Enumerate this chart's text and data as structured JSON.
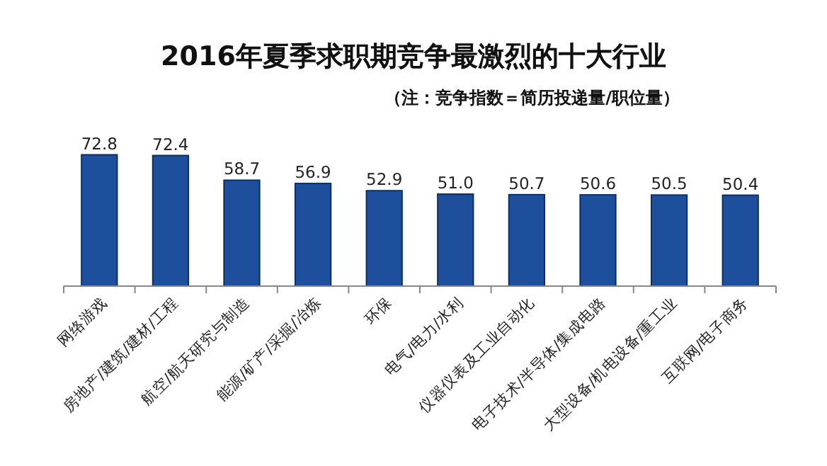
{
  "chart_data": {
    "type": "bar",
    "title": "2016年夏季求职期竞争最激烈的十大行业",
    "subtitle": "（注：竞争指数＝简历投递量/职位量）",
    "categories": [
      "网络游戏",
      "房地产/建筑/建材/工程",
      "航空/航天研究与制造",
      "能源/矿产/采掘/冶炼",
      "环保",
      "电气/电力/水利",
      "仪器仪表及工业自动化",
      "电子技术/半导体/集成电路",
      "大型设备/机电设备/重工业",
      "互联网/电子商务"
    ],
    "values": [
      72.8,
      72.4,
      58.7,
      56.9,
      52.9,
      51.0,
      50.7,
      50.6,
      50.5,
      50.4
    ],
    "value_labels": [
      "72.8",
      "72.4",
      "58.7",
      "56.9",
      "52.9",
      "51.0",
      "50.7",
      "50.6",
      "50.5",
      "50.4"
    ],
    "color": "#1d4f9c",
    "tick_labels": "x"
  }
}
